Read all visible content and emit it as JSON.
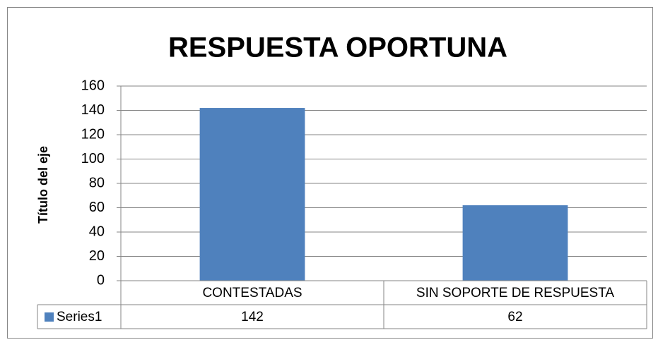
{
  "chart_data": {
    "type": "bar",
    "title": "RESPUESTA OPORTUNA",
    "y_label": "Título del eje",
    "categories": [
      "CONTESTADAS",
      "SIN SOPORTE DE RESPUESTA"
    ],
    "series": [
      {
        "name": "Series1",
        "color": "#4f81bd",
        "values": [
          142,
          62
        ]
      }
    ],
    "ylim": [
      0,
      160
    ],
    "yticks": [
      0,
      20,
      40,
      60,
      80,
      100,
      120,
      140,
      160
    ],
    "grid": true,
    "data_table": true
  }
}
